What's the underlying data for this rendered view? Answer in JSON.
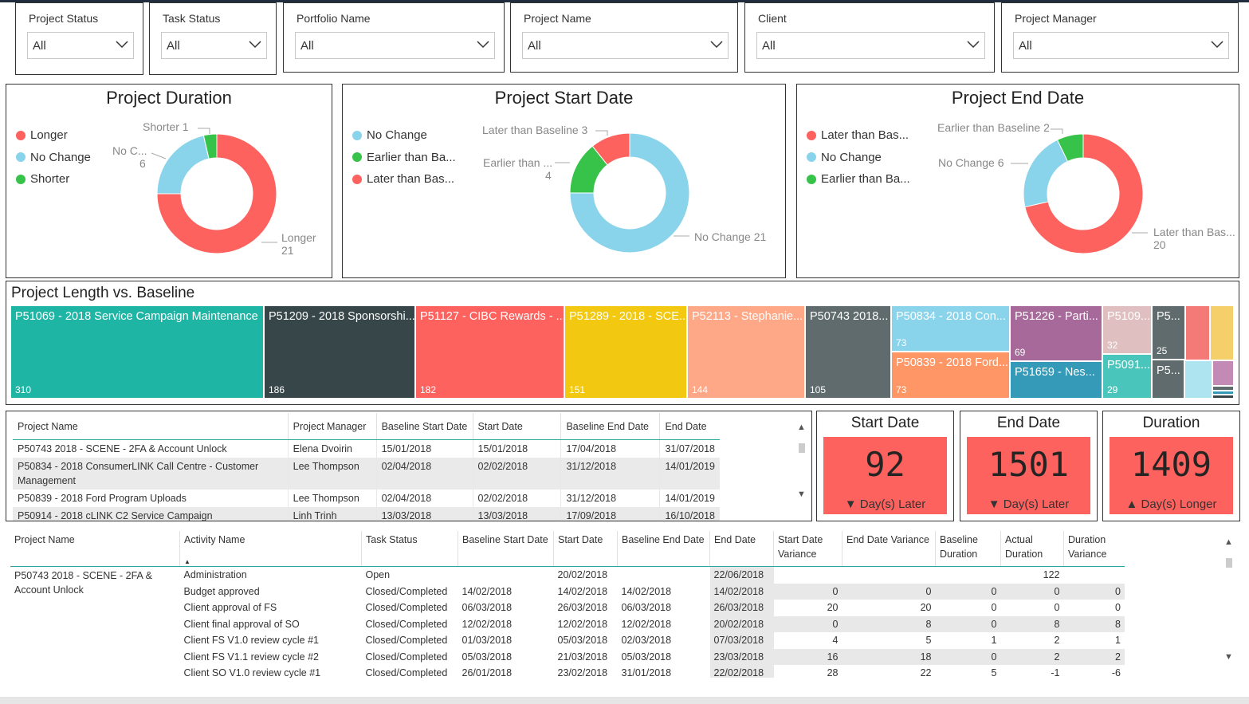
{
  "slicers": [
    {
      "label": "Project Status",
      "value": "All"
    },
    {
      "label": "Task Status",
      "value": "All"
    },
    {
      "label": "Portfolio Name",
      "value": "All"
    },
    {
      "label": "Project Name",
      "value": "All"
    },
    {
      "label": "Client",
      "value": "All"
    },
    {
      "label": "Project Manager",
      "value": "All"
    }
  ],
  "donuts": [
    {
      "title": "Project Duration",
      "legend": [
        {
          "label": "Longer",
          "color": "#fd625e"
        },
        {
          "label": "No Change",
          "color": "#8ad4eb"
        },
        {
          "label": "Shorter",
          "color": "#37c24a"
        }
      ],
      "slices": [
        {
          "label": "Longer",
          "value": 21,
          "color": "#fd625e"
        },
        {
          "label": "No Change",
          "value": 6,
          "color": "#8ad4eb"
        },
        {
          "label": "Shorter",
          "value": 1,
          "color": "#37c24a"
        }
      ],
      "labels": [
        {
          "name": "Shorter 1"
        },
        {
          "name": "No C...",
          "value": "6"
        },
        {
          "name": "Longer",
          "value": "21"
        }
      ]
    },
    {
      "title": "Project Start Date",
      "legend": [
        {
          "label": "No Change",
          "color": "#8ad4eb"
        },
        {
          "label": "Earlier than Ba...",
          "color": "#37c24a"
        },
        {
          "label": "Later than Bas...",
          "color": "#fd625e"
        }
      ],
      "slices": [
        {
          "label": "No Change",
          "value": 21,
          "color": "#8ad4eb"
        },
        {
          "label": "Earlier than Baseline",
          "value": 4,
          "color": "#37c24a"
        },
        {
          "label": "Later than Baseline",
          "value": 3,
          "color": "#fd625e"
        }
      ],
      "labels": [
        {
          "name": "Later than Baseline 3"
        },
        {
          "name": "Earlier than ...",
          "value": "4"
        },
        {
          "name": "No Change 21"
        }
      ]
    },
    {
      "title": "Project End Date",
      "legend": [
        {
          "label": "Later than Bas...",
          "color": "#fd625e"
        },
        {
          "label": "No Change",
          "color": "#8ad4eb"
        },
        {
          "label": "Earlier than Ba...",
          "color": "#37c24a"
        }
      ],
      "slices": [
        {
          "label": "Later than Baseline",
          "value": 20,
          "color": "#fd625e"
        },
        {
          "label": "No Change",
          "value": 6,
          "color": "#8ad4eb"
        },
        {
          "label": "Earlier than Baseline",
          "value": 2,
          "color": "#37c24a"
        }
      ],
      "labels": [
        {
          "name": "Earlier than Baseline 2"
        },
        {
          "name": "No Change 6"
        },
        {
          "name": "Later than Bas...",
          "value": "20"
        }
      ]
    }
  ],
  "treemap": {
    "title": "Project Length vs. Baseline",
    "tiles": [
      {
        "name": "P51069 - 2018 Service Campaign Maintenance",
        "value": "310",
        "color": "#1fb5a5"
      },
      {
        "name": "P51209 - 2018 Sponsorshi...",
        "value": "186",
        "color": "#374649"
      },
      {
        "name": "P51127 - CIBC Rewards - ...",
        "value": "182",
        "color": "#fd625e"
      },
      {
        "name": "P51289 - 2018 - SCE...",
        "value": "151",
        "color": "#f2c811"
      },
      {
        "name": "P52113 - Stephanie...",
        "value": "144",
        "color": "#fea888"
      },
      {
        "name": "P50743 2018...",
        "value": "105",
        "color": "#5f6b6d"
      },
      {
        "name": "P50834 - 2018 Con...",
        "value": "73",
        "color": "#8ad4eb"
      },
      {
        "name": "P50839 - 2018 Ford...",
        "value": "73",
        "color": "#fe9666"
      },
      {
        "name": "P51226 - Parti...",
        "value": "69",
        "color": "#a66999"
      },
      {
        "name": "P51659 - Nes...",
        "value": "",
        "color": "#3599b8"
      },
      {
        "name": "P5109...",
        "value": "32",
        "color": "#dfbfbf"
      },
      {
        "name": "P5091...",
        "value": "29",
        "color": "#4ac5bb"
      },
      {
        "name": "P5...",
        "value": "25",
        "color": "#5f6b6d"
      },
      {
        "name": "P5...",
        "value": "",
        "color": "#5f6b6d"
      }
    ]
  },
  "project_table": {
    "headers": [
      "Project Name",
      "Project Manager",
      "Baseline Start Date",
      "Start Date",
      "Baseline End Date",
      "End Date"
    ],
    "rows": [
      [
        "P50743 2018 - SCENE - 2FA & Account Unlock",
        "Elena Dvoirin",
        "15/01/2018",
        "15/01/2018",
        "17/04/2018",
        "31/07/2018"
      ],
      [
        "P50834 - 2018 ConsumerLINK Call Centre - Customer Management",
        "Lee Thompson",
        "02/04/2018",
        "02/02/2018",
        "31/12/2018",
        "14/01/2019"
      ],
      [
        "P50839 - 2018 Ford Program Uploads",
        "Lee Thompson",
        "02/04/2018",
        "02/02/2018",
        "31/12/2018",
        "14/01/2019"
      ],
      [
        "P50914 - 2018 cLINK C2 Service Campaign",
        "Linh Trinh",
        "13/03/2018",
        "13/03/2018",
        "17/09/2018",
        "16/10/2018"
      ]
    ]
  },
  "kpis": [
    {
      "title": "Start Date",
      "value": "92",
      "arrow": "▼",
      "sub": "Day(s) Later"
    },
    {
      "title": "End Date",
      "value": "1501",
      "arrow": "▼",
      "sub": "Day(s) Later"
    },
    {
      "title": "Duration",
      "value": "1409",
      "arrow": "▲",
      "sub": "Day(s) Longer"
    }
  ],
  "activity_table": {
    "headers": [
      "Project Name",
      "Activity Name",
      "Task Status",
      "Baseline Start Date",
      "Start Date",
      "Baseline End Date",
      "End Date",
      "Start Date Variance",
      "End Date Variance",
      "Baseline Duration",
      "Actual Duration",
      "Duration Variance"
    ],
    "project": "P50743 2018 - SCENE - 2FA & Account Unlock",
    "rows": [
      [
        "Administration",
        "Open",
        "",
        "20/02/2018",
        "",
        "22/06/2018",
        "",
        "",
        "",
        "122",
        ""
      ],
      [
        "Budget approved",
        "Closed/Completed",
        "14/02/2018",
        "14/02/2018",
        "14/02/2018",
        "14/02/2018",
        "0",
        "0",
        "0",
        "0",
        "0"
      ],
      [
        "Client approval of FS",
        "Closed/Completed",
        "06/03/2018",
        "26/03/2018",
        "06/03/2018",
        "26/03/2018",
        "20",
        "20",
        "0",
        "0",
        "0"
      ],
      [
        "Client final approval of SO",
        "Closed/Completed",
        "12/02/2018",
        "12/02/2018",
        "12/02/2018",
        "20/02/2018",
        "0",
        "8",
        "0",
        "8",
        "8"
      ],
      [
        "Client FS V1.0 review cycle #1",
        "Closed/Completed",
        "01/03/2018",
        "05/03/2018",
        "02/03/2018",
        "07/03/2018",
        "4",
        "5",
        "1",
        "2",
        "1"
      ],
      [
        "Client FS V1.1 review cycle #2",
        "Closed/Completed",
        "05/03/2018",
        "21/03/2018",
        "05/03/2018",
        "23/03/2018",
        "16",
        "18",
        "0",
        "2",
        "2"
      ],
      [
        "Client SO V1.0 review cycle #1",
        "Closed/Completed",
        "26/01/2018",
        "23/02/2018",
        "31/01/2018",
        "22/02/2018",
        "28",
        "22",
        "5",
        "-1",
        "-6"
      ]
    ]
  }
}
